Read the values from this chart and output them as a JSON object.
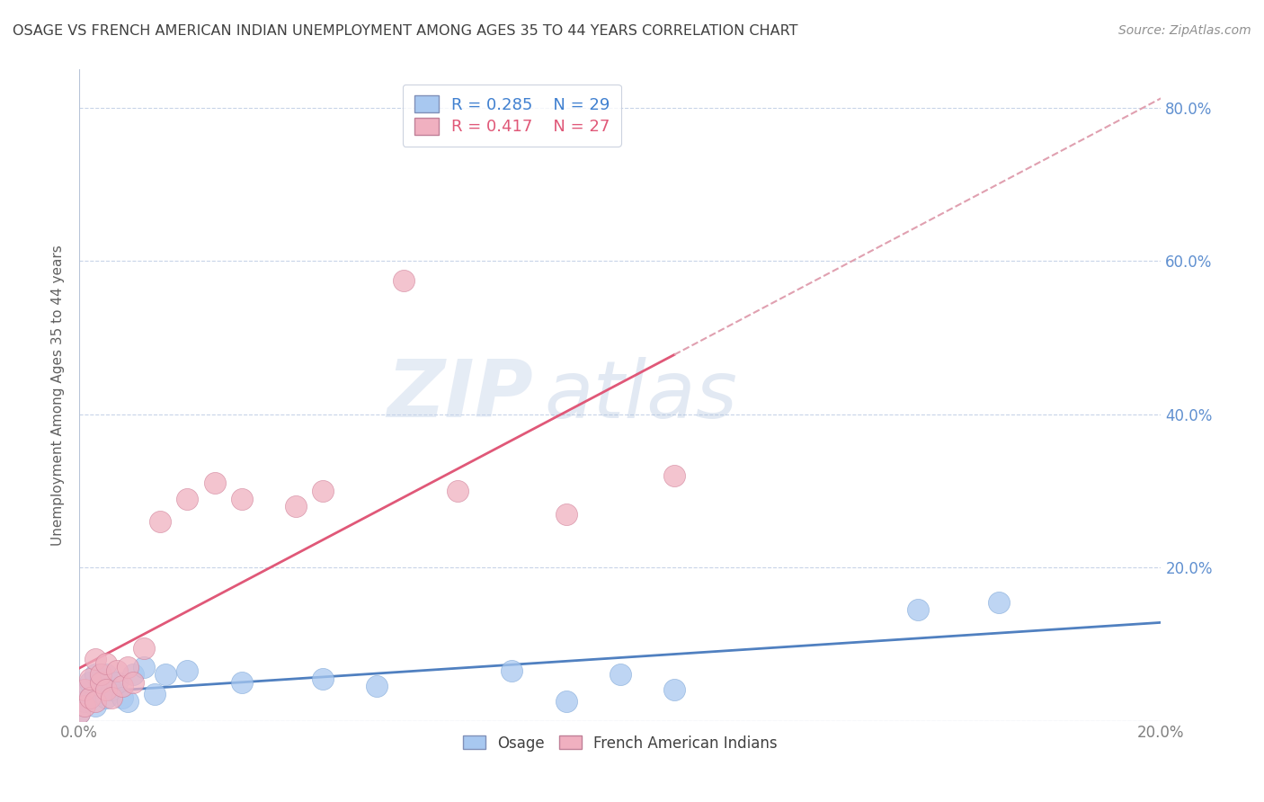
{
  "title": "OSAGE VS FRENCH AMERICAN INDIAN UNEMPLOYMENT AMONG AGES 35 TO 44 YEARS CORRELATION CHART",
  "source": "Source: ZipAtlas.com",
  "ylabel": "Unemployment Among Ages 35 to 44 years",
  "xlim": [
    0.0,
    0.2
  ],
  "ylim": [
    0.0,
    0.85
  ],
  "x_ticks": [
    0.0,
    0.05,
    0.1,
    0.15,
    0.2
  ],
  "y_ticks": [
    0.0,
    0.2,
    0.4,
    0.6,
    0.8
  ],
  "osage_R": "0.285",
  "osage_N": "29",
  "fai_R": "0.417",
  "fai_N": "27",
  "legend_label_1": "Osage",
  "legend_label_2": "French American Indians",
  "watermark_zip": "ZIP",
  "watermark_atlas": "atlas",
  "osage_color": "#a8c8f0",
  "osage_line_color": "#5080c0",
  "fai_color": "#f0b0c0",
  "fai_line_color": "#e05878",
  "fai_dash_color": "#e0a0b0",
  "osage_x": [
    0.0,
    0.001,
    0.001,
    0.002,
    0.002,
    0.003,
    0.003,
    0.004,
    0.004,
    0.005,
    0.005,
    0.006,
    0.007,
    0.008,
    0.009,
    0.01,
    0.012,
    0.014,
    0.016,
    0.02,
    0.03,
    0.045,
    0.055,
    0.08,
    0.09,
    0.1,
    0.11,
    0.155,
    0.17
  ],
  "osage_y": [
    0.01,
    0.025,
    0.04,
    0.03,
    0.05,
    0.02,
    0.06,
    0.045,
    0.055,
    0.03,
    0.06,
    0.04,
    0.05,
    0.03,
    0.025,
    0.06,
    0.07,
    0.035,
    0.06,
    0.065,
    0.05,
    0.055,
    0.045,
    0.065,
    0.025,
    0.06,
    0.04,
    0.145,
    0.155
  ],
  "fai_x": [
    0.0,
    0.001,
    0.001,
    0.002,
    0.002,
    0.003,
    0.003,
    0.004,
    0.004,
    0.005,
    0.005,
    0.006,
    0.007,
    0.008,
    0.009,
    0.01,
    0.012,
    0.015,
    0.02,
    0.025,
    0.03,
    0.04,
    0.045,
    0.06,
    0.07,
    0.09,
    0.11
  ],
  "fai_y": [
    0.01,
    0.02,
    0.04,
    0.03,
    0.055,
    0.025,
    0.08,
    0.05,
    0.06,
    0.04,
    0.075,
    0.03,
    0.065,
    0.045,
    0.07,
    0.05,
    0.095,
    0.26,
    0.29,
    0.31,
    0.29,
    0.28,
    0.3,
    0.575,
    0.3,
    0.27,
    0.32
  ],
  "background_color": "#ffffff",
  "grid_color": "#c8d4e8",
  "title_color": "#404040",
  "axis_label_color": "#606060",
  "tick_label_color": "#808080",
  "right_tick_color": "#6090d0"
}
